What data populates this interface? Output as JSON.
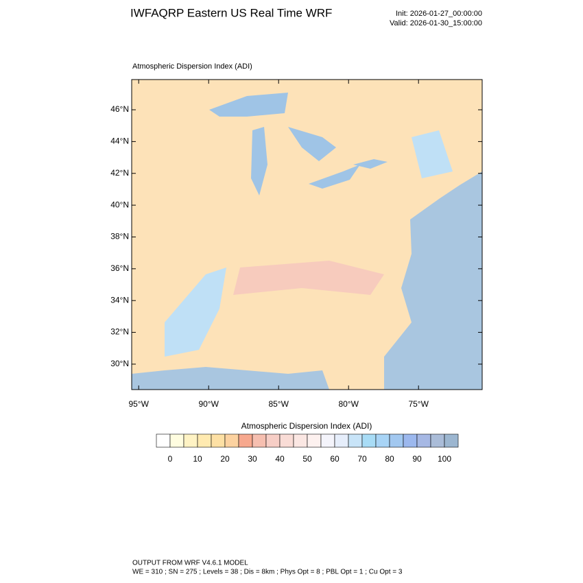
{
  "header": {
    "title": "IWFAQRP Eastern US Real Time WRF",
    "init": "Init: 2026-01-27_00:00:00",
    "valid": "Valid: 2026-01-30_15:00:00"
  },
  "map": {
    "title": "Atmospheric Dispersion Index   (ADI)",
    "xlim": [
      -95.5,
      -70.45
    ],
    "ylim": [
      28.4,
      47.9
    ],
    "xticks": [
      {
        "value": -95,
        "label": "95°W"
      },
      {
        "value": -90,
        "label": "90°W"
      },
      {
        "value": -85,
        "label": "85°W"
      },
      {
        "value": -80,
        "label": "80°W"
      },
      {
        "value": -75,
        "label": "75°W"
      }
    ],
    "yticks": [
      {
        "value": 30,
        "label": "30°N"
      },
      {
        "value": 32,
        "label": "32°N"
      },
      {
        "value": 34,
        "label": "34°N"
      },
      {
        "value": 36,
        "label": "36°N"
      },
      {
        "value": 38,
        "label": "38°N"
      },
      {
        "value": 40,
        "label": "40°N"
      },
      {
        "value": 42,
        "label": "42°N"
      },
      {
        "value": 44,
        "label": "44°N"
      },
      {
        "value": 46,
        "label": "46°N"
      }
    ]
  },
  "colorbar": {
    "title": "Atmospheric Dispersion Index  (ADI)",
    "vlim": [
      -5,
      105
    ],
    "ticks": [
      0,
      10,
      20,
      30,
      40,
      50,
      60,
      70,
      80,
      90,
      100
    ],
    "colors": [
      "#ffffff",
      "#fffde0",
      "#fff3c4",
      "#ffeab0",
      "#fde0a4",
      "#fcd2a0",
      "#f7a88e",
      "#f6bfb0",
      "#f7cec6",
      "#f9dcd6",
      "#fbe7e3",
      "#fdf1ef",
      "#f4f4fb",
      "#e6eefb",
      "#c8e4f8",
      "#a8dcf6",
      "#a8d4f6",
      "#a2c8f0",
      "#9cb8ee",
      "#a6b8e4",
      "#aabcd8",
      "#9cb6d0"
    ]
  },
  "footer": {
    "line1": "OUTPUT FROM WRF V4.6.1 MODEL",
    "line2": "WE = 310 ; SN = 275 ; Levels = 38 ; Dis = 8km ; Phys Opt = 8 ; PBL Opt = 1 ; Cu Opt = 3"
  }
}
